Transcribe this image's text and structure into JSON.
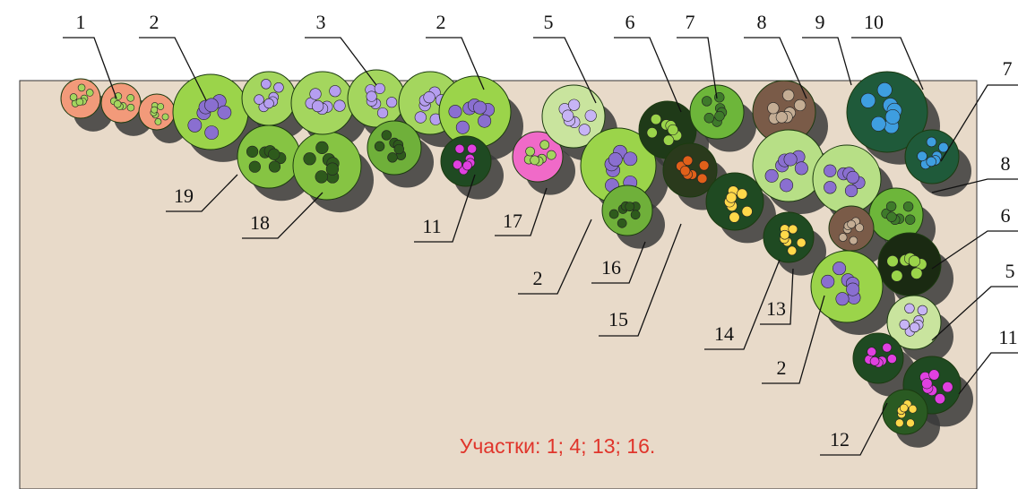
{
  "labels": [
    "1",
    "2",
    "3",
    "2",
    "5",
    "6",
    "7",
    "8",
    "9",
    "10",
    "7",
    "8",
    "6",
    "5",
    "11",
    "19",
    "18",
    "11",
    "17",
    "2",
    "16",
    "15",
    "14",
    "13",
    "2",
    "12"
  ],
  "caption": "Участки: 1; 4; 13; 16."
}
